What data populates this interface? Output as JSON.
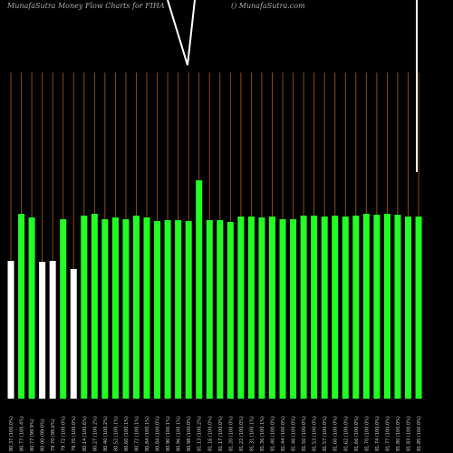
{
  "chart_data": {
    "type": "bar",
    "title": "MunafaSutra  Money  Flow  Charts for FIHA",
    "subtitle": "() MunafaSutra.com",
    "categories": [
      "80.37 (100.0%)",
      "80.77 (100.4%)",
      "80.77 (99.9%)",
      "80.00 (99.0%)",
      "79.70 (99.6%)",
      "79.72 (100.0%)",
      "79.70 (100.0%)",
      "80.14 (100.6%)",
      "80.27 (100.2%)",
      "80.40 (100.2%)",
      "80.52 (100.1%)",
      "80.60 (100.1%)",
      "80.72 (100.1%)",
      "80.84 (100.1%)",
      "80.84 (100.0%)",
      "80.90 (100.1%)",
      "80.96 (100.1%)",
      "80.98 (100.0%)",
      "81.13 (100.2%)",
      "81.16 (100.0%)",
      "81.17 (100.0%)",
      "81.20 (100.0%)",
      "81.22 (100.0%)",
      "81.31 (100.1%)",
      "81.36 (100.1%)",
      "81.40 (100.0%)",
      "81.44 (100.0%)",
      "81.46 (100.0%)",
      "81.50 (100.0%)",
      "81.53 (100.0%)",
      "81.57 (100.0%)",
      "81.60 (100.0%)",
      "81.62 (100.0%)",
      "81.66 (100.0%)",
      "81.70 (100.0%)",
      "81.74 (100.0%)",
      "81.77 (100.0%)",
      "81.80 (100.0%)",
      "81.83 (100.0%)",
      "81.85 (100.0%)"
    ],
    "series": [
      {
        "values": [
          152,
          204,
          200,
          151,
          152,
          198,
          143,
          202,
          204,
          198,
          200,
          198,
          202,
          200,
          196,
          197,
          197,
          196,
          241,
          197,
          197,
          195,
          201,
          201,
          200,
          201,
          198,
          198,
          202,
          202,
          201,
          202,
          201,
          202,
          204,
          203,
          204,
          203,
          201,
          201
        ],
        "colors": [
          "#ffffff",
          "#22ff22",
          "#22ff22",
          "#ffffff",
          "#ffffff",
          "#22ff22",
          "#ffffff",
          "#22ff22",
          "#22ff22",
          "#22ff22",
          "#22ff22",
          "#22ff22",
          "#22ff22",
          "#22ff22",
          "#22ff22",
          "#22ff22",
          "#22ff22",
          "#22ff22",
          "#22ff22",
          "#22ff22",
          "#22ff22",
          "#22ff22",
          "#22ff22",
          "#22ff22",
          "#22ff22",
          "#22ff22",
          "#22ff22",
          "#22ff22",
          "#22ff22",
          "#22ff22",
          "#22ff22",
          "#22ff22",
          "#22ff22",
          "#22ff22",
          "#22ff22",
          "#22ff22",
          "#22ff22",
          "#22ff22",
          "#22ff22",
          "#22ff22"
        ]
      }
    ],
    "ylim": [
      0,
      250
    ],
    "grid_color": "#8b4a10"
  }
}
